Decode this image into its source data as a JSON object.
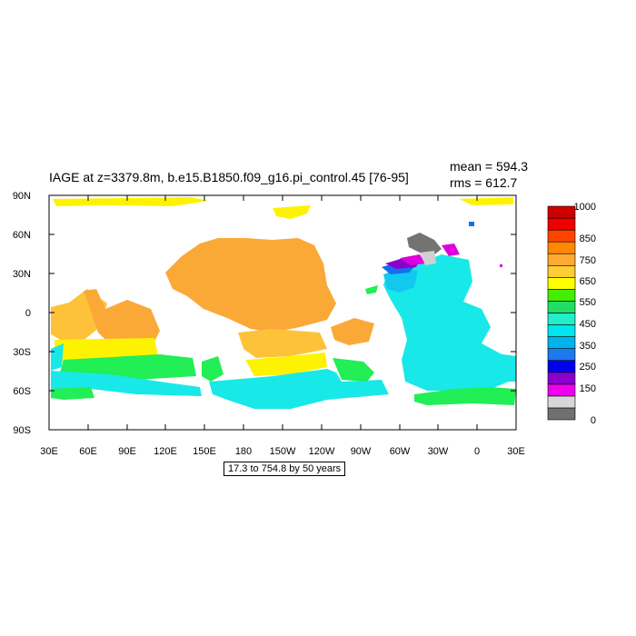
{
  "title": "IAGE at z=3379.8m, b.e15.B1850.f09_g16.pi_control.45 [76-95]",
  "stats": {
    "mean": "mean = 594.3",
    "rms": "rms = 612.7"
  },
  "contour_info": "17.3 to 754.8 by 50 years",
  "map": {
    "lat_ticks": [
      "90N",
      "60N",
      "30N",
      "0",
      "30S",
      "60S",
      "90S"
    ],
    "lon_ticks": [
      "30E",
      "60E",
      "90E",
      "120E",
      "150E",
      "180",
      "150W",
      "120W",
      "90W",
      "60W",
      "30W",
      "0",
      "30E"
    ]
  },
  "colorbar": {
    "labels": [
      "1000",
      "850",
      "750",
      "650",
      "550",
      "450",
      "350",
      "250",
      "150",
      "0"
    ],
    "colors": [
      "#707070",
      "#d7d7d7",
      "#ee00ee",
      "#8800cc",
      "#0000ee",
      "#1e78ee",
      "#00b2ee",
      "#00e5ee",
      "#22eecc",
      "#22dd66",
      "#44ee00",
      "#ffff00",
      "#ffcc33",
      "#ffaa33",
      "#ff8800",
      "#ff4400",
      "#ee0000",
      "#cc0000"
    ]
  },
  "regions_colors": {
    "orange": "#faa937",
    "light_orange": "#fec23a",
    "yellow": "#fdf300",
    "green": "#22ee55",
    "lime": "#66ee00",
    "aqua": "#19e8e8",
    "light_blue": "#13c8ee",
    "blue": "#1070ee",
    "purple": "#8a00cc",
    "magenta": "#dd00dd",
    "gray": "#737373",
    "light_gray": "#d0d0d0"
  }
}
